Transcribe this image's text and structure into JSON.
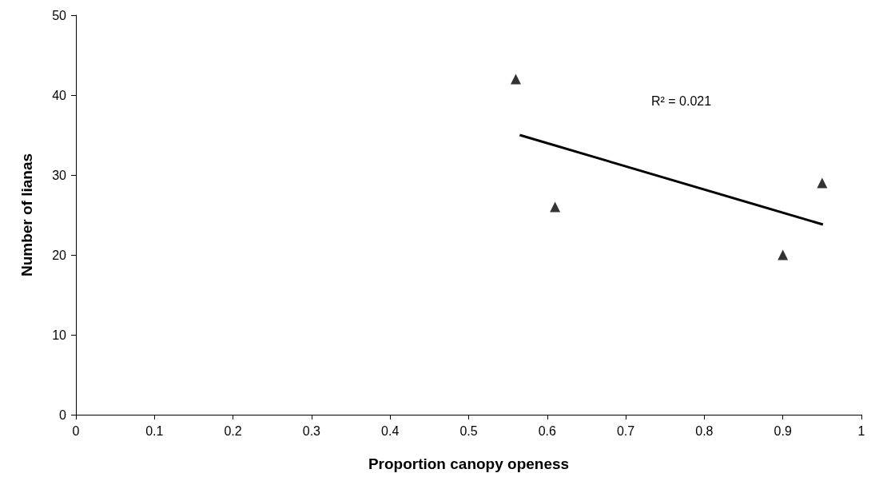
{
  "chart_data": {
    "type": "scatter",
    "xlabel": "Proportion canopy openess",
    "ylabel": "Number of lianas",
    "xlim": [
      0,
      1
    ],
    "xticks": [
      0,
      0.1,
      0.2,
      0.3,
      0.4,
      0.5,
      0.6,
      0.7,
      0.8,
      0.9,
      1
    ],
    "ylim": [
      0,
      50
    ],
    "yticks": [
      0,
      10,
      20,
      30,
      40,
      50
    ],
    "grid": false,
    "annotations": [
      "R² = 0.021"
    ],
    "series": [
      {
        "color": "#000000",
        "marker": "triangle",
        "x": [
          0.56,
          0.61,
          0.9,
          0.95
        ],
        "values": [
          42,
          26,
          20,
          29
        ]
      },
      {
        "type": "line",
        "color": "#000000",
        "marker": "none",
        "x": [
          0.565,
          0.951
        ],
        "values": [
          35,
          23.8
        ]
      }
    ]
  }
}
